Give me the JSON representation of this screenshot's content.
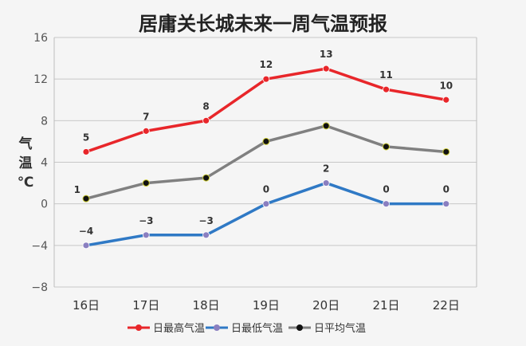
{
  "chart_data": {
    "type": "line",
    "title": "居庸关长城未来一周气温预报",
    "ylabel": [
      "气",
      "温",
      "℃"
    ],
    "categories": [
      "16日",
      "17日",
      "18日",
      "19日",
      "20日",
      "21日",
      "22日"
    ],
    "ylim": [
      -8,
      16
    ],
    "yticks": [
      16,
      12,
      8,
      4,
      0,
      -4,
      -8
    ],
    "ytick_labels": [
      "16",
      "12",
      "8",
      "4",
      "0",
      "−4",
      "−8"
    ],
    "grid": true,
    "legend_position": "bottom",
    "series": [
      {
        "name": "日最高气温",
        "color": "#e8262a",
        "values": [
          5,
          7,
          8,
          12,
          13,
          11,
          10
        ],
        "labels": [
          "5",
          "7",
          "8",
          "12",
          "13",
          "11",
          "10"
        ],
        "marker_color": "#e8262a"
      },
      {
        "name": "日最低气温",
        "color": "#2f79c5",
        "values": [
          -4,
          -3,
          -3,
          0,
          2,
          0,
          0
        ],
        "labels": [
          "−4",
          "−3",
          "−3",
          "0",
          "2",
          "0",
          "0"
        ],
        "marker_color": "#8a7fc0"
      },
      {
        "name": "日平均气温",
        "color": "#808080",
        "values": [
          0.5,
          2,
          2.5,
          6,
          7.5,
          5.5,
          5
        ],
        "labels": [
          "1",
          "",
          "",
          "",
          "",
          "",
          ""
        ],
        "marker_color": "#111111"
      }
    ]
  }
}
